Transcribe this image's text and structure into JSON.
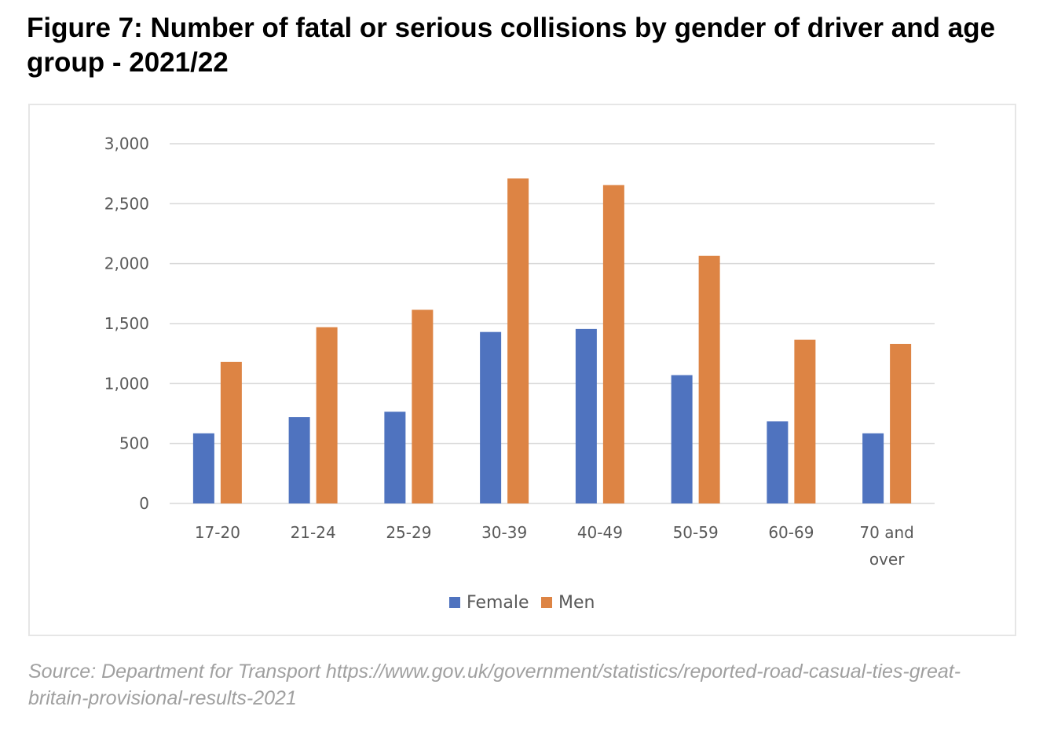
{
  "title": "Figure 7: Number of fatal or serious collisions by gender of driver and age group - 2021/22",
  "source": "Source: Department for Transport https://www.gov.uk/government/statistics/reported-road-casual-ties-great-britain-provisional-results-2021",
  "colors": {
    "female": "#4f73bf",
    "men": "#dd8444",
    "grid": "#d9d9d9",
    "axis_text": "#595959"
  },
  "chart_data": {
    "type": "bar",
    "title": "",
    "xlabel": "",
    "ylabel": "",
    "categories": [
      "17-20",
      "21-24",
      "25-29",
      "30-39",
      "40-49",
      "50-59",
      "60-69",
      "70 and over"
    ],
    "category_lines": [
      [
        "17-20"
      ],
      [
        "21-24"
      ],
      [
        "25-29"
      ],
      [
        "30-39"
      ],
      [
        "40-49"
      ],
      [
        "50-59"
      ],
      [
        "60-69"
      ],
      [
        "70 and",
        "over"
      ]
    ],
    "series": [
      {
        "name": "Female",
        "values": [
          585,
          720,
          765,
          1430,
          1455,
          1070,
          685,
          585
        ]
      },
      {
        "name": "Men",
        "values": [
          1180,
          1470,
          1615,
          2710,
          2655,
          2065,
          1365,
          1330
        ]
      }
    ],
    "ylim": [
      0,
      3000
    ],
    "yticks": [
      0,
      500,
      1000,
      1500,
      2000,
      2500,
      3000
    ],
    "ytick_labels": [
      "0",
      "500",
      "1,000",
      "1,500",
      "2,000",
      "2,500",
      "3,000"
    ],
    "grid": true,
    "legend_position": "bottom"
  }
}
